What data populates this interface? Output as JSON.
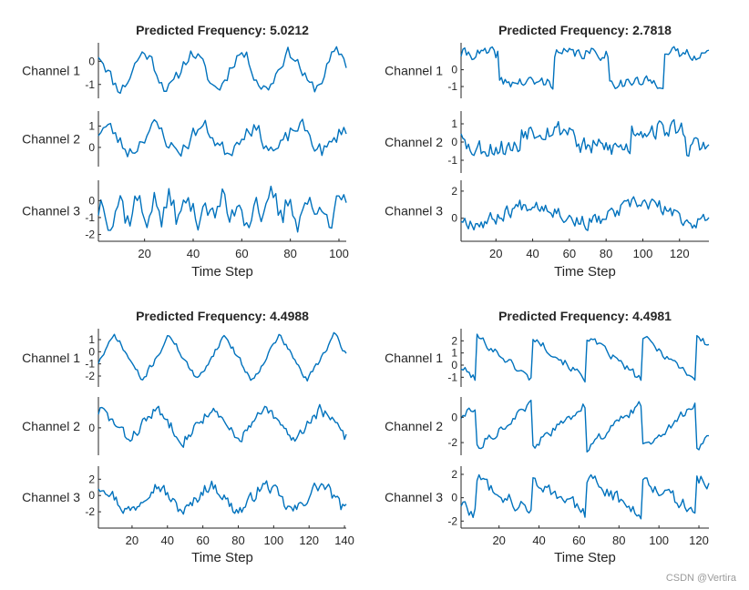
{
  "watermark": "CSDN @Vertira",
  "colors": {
    "line": "#0072BD",
    "axis": "#262626",
    "text": "#262626"
  },
  "chart_data": [
    {
      "type": "line",
      "title": "Predicted Frequency: 5.0212",
      "xlabel": "Time Step",
      "xlim": [
        1,
        103
      ],
      "xticks": [
        20,
        40,
        60,
        80,
        100
      ],
      "n_points": 103,
      "channels": [
        {
          "name": "Channel 1",
          "ylim": [
            -1.6,
            0.8
          ],
          "yticks": [
            0,
            -1
          ],
          "ytick_labels": [
            "0",
            "-1"
          ],
          "pattern": {
            "kind": "sine",
            "period": 19.9,
            "amp": 0.75,
            "offset": -0.4,
            "noise": 0.28,
            "phase": 0.3,
            "seed": 11
          }
        },
        {
          "name": "Channel 2",
          "ylim": [
            -0.9,
            1.7
          ],
          "yticks": [
            1,
            0
          ],
          "ytick_labels": [
            "1",
            "0"
          ],
          "pattern": {
            "kind": "sine",
            "period": 19.9,
            "amp": 0.55,
            "offset": 0.4,
            "noise": 0.35,
            "phase": 2.1,
            "seed": 23
          }
        },
        {
          "name": "Channel 3",
          "ylim": [
            -2.4,
            1.2
          ],
          "yticks": [
            0,
            -1,
            -2
          ],
          "ytick_labels": [
            "0",
            "-1",
            "-2"
          ],
          "pattern": {
            "kind": "sine",
            "period": 7.0,
            "amp": 0.6,
            "offset": -0.5,
            "noise": 0.75,
            "phase": 1.0,
            "seed": 37
          }
        }
      ]
    },
    {
      "type": "line",
      "title": "Predicted Frequency: 2.7818",
      "xlabel": "Time Step",
      "xlim": [
        1,
        136
      ],
      "xticks": [
        20,
        40,
        60,
        80,
        100,
        120
      ],
      "n_points": 136,
      "channels": [
        {
          "name": "Channel 1",
          "ylim": [
            -1.7,
            1.6
          ],
          "yticks": [
            0,
            -1
          ],
          "ytick_labels": [
            "0",
            "-1"
          ],
          "pattern": {
            "kind": "square",
            "period": 60,
            "amp": 0.85,
            "offset": 0.1,
            "noise": 0.32,
            "phase": 0.15,
            "seed": 41
          }
        },
        {
          "name": "Channel 2",
          "ylim": [
            -1.7,
            1.7
          ],
          "yticks": [
            1,
            0,
            -1
          ],
          "ytick_labels": [
            "1",
            "0",
            "-1"
          ],
          "pattern": {
            "kind": "square",
            "period": 60,
            "amp": 0.5,
            "offset": 0.2,
            "noise": 0.5,
            "phase": 0.45,
            "seed": 53
          }
        },
        {
          "name": "Channel 3",
          "ylim": [
            -1.7,
            2.8
          ],
          "yticks": [
            2,
            0
          ],
          "ytick_labels": [
            "2",
            "0"
          ],
          "pattern": {
            "kind": "sine",
            "period": 60,
            "amp": 0.7,
            "offset": 0.4,
            "noise": 0.5,
            "phase": 3.6,
            "seed": 67
          }
        }
      ]
    },
    {
      "type": "line",
      "title": "Predicted Frequency: 4.4988",
      "xlabel": "Time Step",
      "xlim": [
        1,
        141
      ],
      "xticks": [
        20,
        40,
        60,
        80,
        100,
        120,
        140
      ],
      "n_points": 141,
      "channels": [
        {
          "name": "Channel 1",
          "ylim": [
            -2.9,
            1.9
          ],
          "yticks": [
            1,
            0,
            -1,
            -2
          ],
          "ytick_labels": [
            "1",
            "0",
            "-1",
            "-2"
          ],
          "pattern": {
            "kind": "triangle",
            "period": 31,
            "amp": 1.9,
            "offset": -0.5,
            "noise": 0.22,
            "phase": 0.2,
            "seed": 71
          }
        },
        {
          "name": "Channel 2",
          "ylim": [
            -1.6,
            1.8
          ],
          "yticks": [
            0
          ],
          "ytick_labels": [
            "0"
          ],
          "pattern": {
            "kind": "triangle",
            "period": 31,
            "amp": 0.9,
            "offset": 0.2,
            "noise": 0.3,
            "phase": 0.45,
            "seed": 83
          }
        },
        {
          "name": "Channel 3",
          "ylim": [
            -4.0,
            3.6
          ],
          "yticks": [
            2,
            0,
            -2
          ],
          "ytick_labels": [
            "2",
            "0",
            "-2"
          ],
          "pattern": {
            "kind": "sine",
            "period": 31,
            "amp": 1.5,
            "offset": -0.3,
            "noise": 0.7,
            "phase": 1.2,
            "seed": 97
          }
        }
      ]
    },
    {
      "type": "line",
      "title": "Predicted Frequency: 4.4981",
      "xlabel": "Time Step",
      "xlim": [
        1,
        125
      ],
      "xticks": [
        20,
        40,
        60,
        80,
        100,
        120
      ],
      "n_points": 125,
      "channels": [
        {
          "name": "Channel 1",
          "ylim": [
            -1.8,
            3.0
          ],
          "yticks": [
            2,
            1,
            0,
            -1
          ],
          "ytick_labels": [
            "2",
            "1",
            "0",
            "-1"
          ],
          "pattern": {
            "kind": "saw",
            "period": 27.5,
            "amp": 1.8,
            "offset": 0.6,
            "noise": 0.3,
            "phase": 0.72,
            "seed": 101
          }
        },
        {
          "name": "Channel 2",
          "ylim": [
            -3.0,
            1.6
          ],
          "yticks": [
            0,
            -2
          ],
          "ytick_labels": [
            "0",
            "-2"
          ],
          "pattern": {
            "kind": "rsaw",
            "period": 27.5,
            "amp": 1.7,
            "offset": -0.7,
            "noise": 0.32,
            "phase": 0.72,
            "seed": 113
          }
        },
        {
          "name": "Channel 3",
          "ylim": [
            -2.6,
            2.7
          ],
          "yticks": [
            2,
            0,
            -2
          ],
          "ytick_labels": [
            "2",
            "0",
            "-2"
          ],
          "pattern": {
            "kind": "saw",
            "period": 27.5,
            "amp": 1.6,
            "offset": 0.2,
            "noise": 0.55,
            "phase": 0.72,
            "seed": 127
          }
        }
      ]
    }
  ]
}
